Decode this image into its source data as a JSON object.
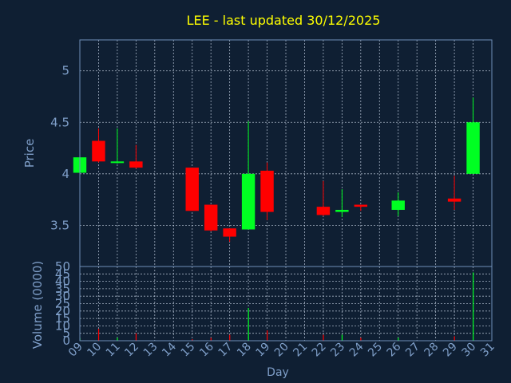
{
  "colors": {
    "background": "#0f1f33",
    "title": "#ffff00",
    "axis_text": "#7f9fc9",
    "frame": "#6f8fb8",
    "grid": "#c8d4e6",
    "up": "#00ff22",
    "down": "#ff0000"
  },
  "chart_data": {
    "type": "candlestick",
    "title": "LEE - last updated 30/12/2025",
    "price_axis": {
      "label": "Price",
      "ylim": [
        3.1,
        5.3
      ],
      "ticks": [
        {
          "value": 3.5,
          "label": "3.5"
        },
        {
          "value": 4,
          "label": "4"
        },
        {
          "value": 4.5,
          "label": "4.5"
        },
        {
          "value": 5,
          "label": "5"
        }
      ]
    },
    "volume_axis": {
      "label": "Volume (0000)",
      "ylim": [
        0,
        50
      ],
      "ticks": [
        {
          "value": 0,
          "label": "0"
        },
        {
          "value": 5,
          "label": "5"
        },
        {
          "value": 10,
          "label": "10"
        },
        {
          "value": 15,
          "label": "15"
        },
        {
          "value": 20,
          "label": "20"
        },
        {
          "value": 25,
          "label": "25"
        },
        {
          "value": 30,
          "label": "30"
        },
        {
          "value": 35,
          "label": "35"
        },
        {
          "value": 40,
          "label": "40"
        },
        {
          "value": 45,
          "label": "45"
        },
        {
          "value": 50,
          "label": "50"
        }
      ]
    },
    "x_axis": {
      "label": "Day",
      "xlim": [
        9,
        31
      ],
      "ticks": [
        {
          "value": 9,
          "label": "09"
        },
        {
          "value": 10,
          "label": "10"
        },
        {
          "value": 11,
          "label": "11"
        },
        {
          "value": 12,
          "label": "12"
        },
        {
          "value": 13,
          "label": "13"
        },
        {
          "value": 14,
          "label": "14"
        },
        {
          "value": 15,
          "label": "15"
        },
        {
          "value": 16,
          "label": "16"
        },
        {
          "value": 17,
          "label": "17"
        },
        {
          "value": 18,
          "label": "18"
        },
        {
          "value": 19,
          "label": "19"
        },
        {
          "value": 20,
          "label": "20"
        },
        {
          "value": 21,
          "label": "21"
        },
        {
          "value": 22,
          "label": "22"
        },
        {
          "value": 23,
          "label": "23"
        },
        {
          "value": 24,
          "label": "24"
        },
        {
          "value": 25,
          "label": "25"
        },
        {
          "value": 26,
          "label": "26"
        },
        {
          "value": 27,
          "label": "27"
        },
        {
          "value": 28,
          "label": "28"
        },
        {
          "value": 29,
          "label": "29"
        },
        {
          "value": 30,
          "label": "30"
        },
        {
          "value": 31,
          "label": "31"
        }
      ]
    },
    "grid": true,
    "candles": [
      {
        "day": 9,
        "open": 4.01,
        "high": 4.16,
        "low": 4.01,
        "close": 4.16,
        "volume": 2
      },
      {
        "day": 10,
        "open": 4.32,
        "high": 4.44,
        "low": 4.11,
        "close": 4.12,
        "volume": 8
      },
      {
        "day": 11,
        "open": 4.11,
        "high": 4.44,
        "low": 4.1,
        "close": 4.12,
        "volume": 2
      },
      {
        "day": 12,
        "open": 4.12,
        "high": 4.28,
        "low": 4.05,
        "close": 4.06,
        "volume": 5
      },
      {
        "day": 15,
        "open": 4.06,
        "high": 4.06,
        "low": 3.64,
        "close": 3.64,
        "volume": 1
      },
      {
        "day": 16,
        "open": 3.7,
        "high": 3.7,
        "low": 3.44,
        "close": 3.45,
        "volume": 2
      },
      {
        "day": 17,
        "open": 3.47,
        "high": 3.47,
        "low": 3.34,
        "close": 3.39,
        "volume": 4
      },
      {
        "day": 18,
        "open": 3.46,
        "high": 4.51,
        "low": 3.46,
        "close": 4.0,
        "volume": 22
      },
      {
        "day": 19,
        "open": 4.03,
        "high": 4.11,
        "low": 3.55,
        "close": 3.63,
        "volume": 7
      },
      {
        "day": 22,
        "open": 3.68,
        "high": 3.93,
        "low": 3.59,
        "close": 3.6,
        "volume": 4
      },
      {
        "day": 23,
        "open": 3.63,
        "high": 3.85,
        "low": 3.58,
        "close": 3.65,
        "volume": 4
      },
      {
        "day": 24,
        "open": 3.7,
        "high": 3.7,
        "low": 3.64,
        "close": 3.68,
        "volume": 2
      },
      {
        "day": 26,
        "open": 3.65,
        "high": 3.82,
        "low": 3.59,
        "close": 3.74,
        "volume": 2
      },
      {
        "day": 29,
        "open": 3.76,
        "high": 3.98,
        "low": 3.65,
        "close": 3.73,
        "volume": 3
      },
      {
        "day": 30,
        "open": 4.0,
        "high": 4.74,
        "low": 4.0,
        "close": 4.5,
        "volume": 46
      }
    ]
  }
}
